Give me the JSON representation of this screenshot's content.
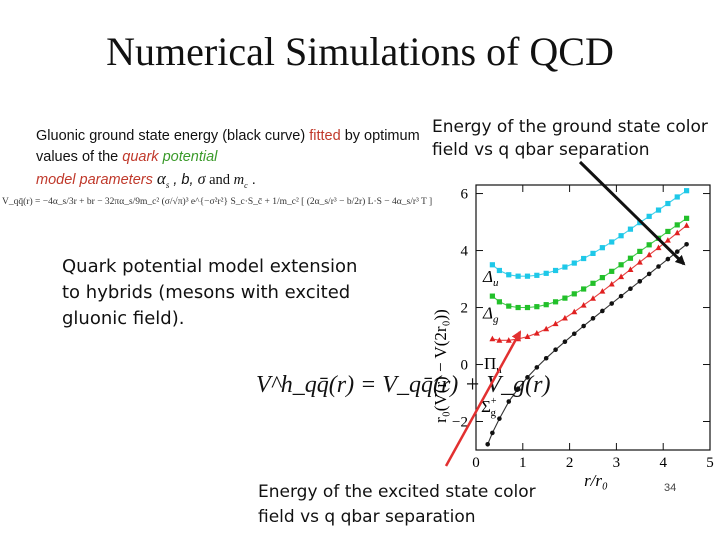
{
  "slide": {
    "title": "Numerical Simulations of QCD",
    "gluonic": {
      "p1": "Gluonic ground state energy (black curve) ",
      "fitted": "fitted",
      "p2": " by optimum values of the ",
      "quark": "quark",
      "potential": "potential",
      "model_params": "model parameters",
      "alpha": "α",
      "alpha_sub": "s",
      "p3": " , b, ",
      "sigma": "σ",
      "and": " and ",
      "m": "m",
      "m_sub": "c",
      "period": " ."
    },
    "formula_text": "V_qq̄(r) = −4α_s/3r + br − 32πα_s/9m_c² (σ/√π)³ e^{−σ²r²} S_c·S_c̄ + 1/m_c² [ (2α_s/r³ − b/2r) L·S − 4α_s/r³ T ]",
    "hybrid_text": "Quark potential model extension to hybrids (mesons with excited gluonic field).",
    "hybrid_formula": "V^h_qq̄(r) = V_qq̄(r) + V_g(r)",
    "ground_text": "Energy of the ground state color field vs q qbar separation",
    "excited_text": "Energy of the excited state color field vs q qbar separation",
    "page_number": "34"
  },
  "colors": {
    "cyan": "#1ec8e8",
    "green": "#22c02a",
    "red": "#e02020",
    "black": "#111111",
    "arrow_red": "#e23030"
  },
  "chart_data": {
    "type": "scatter",
    "xlabel": "r/r₀",
    "ylabel": "r₀(V(r) − V(2r₀))",
    "xlim": [
      0,
      5
    ],
    "ylim": [
      -3,
      6.3
    ],
    "x_ticks": [
      0,
      1,
      2,
      3,
      4,
      5
    ],
    "y_ticks": [
      -2,
      0,
      2,
      4,
      6
    ],
    "series": [
      {
        "name": "Δu",
        "color": "#1ec8e8",
        "marker": "square",
        "x": [
          0.35,
          0.5,
          0.7,
          0.9,
          1.1,
          1.3,
          1.5,
          1.7,
          1.9,
          2.1,
          2.3,
          2.5,
          2.7,
          2.9,
          3.1,
          3.3,
          3.5,
          3.7,
          3.9,
          4.1,
          4.3,
          4.5
        ],
        "y": [
          3.5,
          3.3,
          3.15,
          3.1,
          3.1,
          3.13,
          3.2,
          3.3,
          3.42,
          3.56,
          3.72,
          3.9,
          4.1,
          4.3,
          4.52,
          4.75,
          4.98,
          5.2,
          5.42,
          5.65,
          5.88,
          6.1
        ]
      },
      {
        "name": "Δg",
        "color": "#22c02a",
        "marker": "square",
        "x": [
          0.35,
          0.5,
          0.7,
          0.9,
          1.1,
          1.3,
          1.5,
          1.7,
          1.9,
          2.1,
          2.3,
          2.5,
          2.7,
          2.9,
          3.1,
          3.3,
          3.5,
          3.7,
          3.9,
          4.1,
          4.3,
          4.5
        ],
        "y": [
          2.4,
          2.2,
          2.05,
          2.0,
          2.0,
          2.03,
          2.1,
          2.2,
          2.33,
          2.48,
          2.65,
          2.85,
          3.05,
          3.27,
          3.5,
          3.73,
          3.97,
          4.2,
          4.43,
          4.67,
          4.9,
          5.13
        ]
      },
      {
        "name": "Πu",
        "color": "#e02020",
        "marker": "triangle",
        "x": [
          0.35,
          0.5,
          0.7,
          0.9,
          1.1,
          1.3,
          1.5,
          1.7,
          1.9,
          2.1,
          2.3,
          2.5,
          2.7,
          2.9,
          3.1,
          3.3,
          3.5,
          3.7,
          3.9,
          4.1,
          4.3,
          4.5
        ],
        "y": [
          0.9,
          0.85,
          0.85,
          0.9,
          0.98,
          1.1,
          1.25,
          1.43,
          1.63,
          1.85,
          2.08,
          2.32,
          2.57,
          2.82,
          3.08,
          3.33,
          3.59,
          3.85,
          4.1,
          4.36,
          4.62,
          4.88
        ]
      },
      {
        "name": "Σg+",
        "color": "#111111",
        "marker": "circle",
        "x": [
          0.25,
          0.35,
          0.5,
          0.7,
          0.9,
          1.1,
          1.3,
          1.5,
          1.7,
          1.9,
          2.1,
          2.3,
          2.5,
          2.7,
          2.9,
          3.1,
          3.3,
          3.5,
          3.7,
          3.9,
          4.1,
          4.3,
          4.5
        ],
        "y": [
          -2.8,
          -2.4,
          -1.9,
          -1.3,
          -0.85,
          -0.45,
          -0.1,
          0.22,
          0.52,
          0.8,
          1.08,
          1.35,
          1.62,
          1.88,
          2.14,
          2.4,
          2.66,
          2.92,
          3.18,
          3.44,
          3.7,
          3.96,
          4.22
        ]
      }
    ]
  }
}
